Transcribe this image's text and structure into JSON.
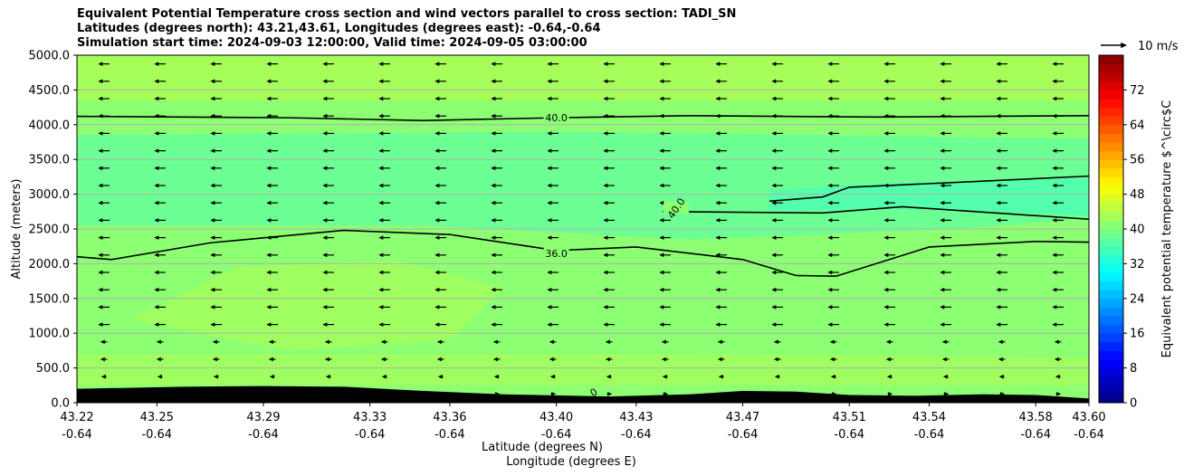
{
  "chart_data": {
    "type": "heatmap",
    "title": [
      "Equivalent Potential Temperature cross section and wind vectors parallel to cross section: TADI_SN",
      "Latitudes (degrees north): 43.21,43.61, Longitudes (degrees east): -0.64,-0.64",
      "Simulation start time: 2024-09-03 12:00:00, Valid time: 2024-09-05 03:00:00"
    ],
    "xlabel": "Latitude (degrees N)",
    "xlabel2": "Longitude (degrees E)",
    "ylabel": "Altitude (meters)",
    "x_ticks": [
      {
        "lat": "43.22",
        "lon": "-0.64"
      },
      {
        "lat": "43.25",
        "lon": "-0.64"
      },
      {
        "lat": "43.29",
        "lon": "-0.64"
      },
      {
        "lat": "43.33",
        "lon": "-0.64"
      },
      {
        "lat": "43.36",
        "lon": "-0.64"
      },
      {
        "lat": "43.40",
        "lon": "-0.64"
      },
      {
        "lat": "43.43",
        "lon": "-0.64"
      },
      {
        "lat": "43.47",
        "lon": "-0.64"
      },
      {
        "lat": "43.51",
        "lon": "-0.64"
      },
      {
        "lat": "43.54",
        "lon": "-0.64"
      },
      {
        "lat": "43.58",
        "lon": "-0.64"
      },
      {
        "lat": "43.60",
        "lon": "-0.64"
      }
    ],
    "xlim": [
      43.22,
      43.6
    ],
    "y_ticks": [
      "0.0",
      "500.0",
      "1000.0",
      "1500.0",
      "2000.0",
      "2500.0",
      "3000.0",
      "3500.0",
      "4000.0",
      "4500.0",
      "5000.0"
    ],
    "ylim": [
      0,
      5000
    ],
    "grid": "horizontal",
    "colorbar": {
      "label": "Equivalent potential temperature $^\\circ$C",
      "range": [
        0,
        80
      ],
      "ticks": [
        "0",
        "8",
        "16",
        "24",
        "32",
        "40",
        "48",
        "56",
        "64",
        "72"
      ]
    },
    "quiver_key": "10 m/s",
    "contour_labels": [
      "40.0",
      "36.0",
      "40.0",
      "0"
    ],
    "contours": [
      {
        "label": "40.0",
        "points": [
          [
            43.22,
            4120
          ],
          [
            43.3,
            4100
          ],
          [
            43.35,
            4060
          ],
          [
            43.4,
            4100
          ],
          [
            43.45,
            4130
          ],
          [
            43.52,
            4110
          ],
          [
            43.6,
            4130
          ]
        ]
      },
      {
        "label": "40.0",
        "points": [
          [
            43.22,
            2100
          ],
          [
            43.233,
            2060
          ],
          [
            43.27,
            2300
          ],
          [
            43.32,
            2480
          ],
          [
            43.36,
            2420
          ],
          [
            43.4,
            2190
          ],
          [
            43.43,
            2240
          ],
          [
            43.47,
            2060
          ],
          [
            43.49,
            1830
          ],
          [
            43.505,
            1820
          ],
          [
            43.54,
            2240
          ],
          [
            43.58,
            2320
          ],
          [
            43.6,
            2310
          ]
        ]
      },
      {
        "label": "36.0",
        "points": [
          [
            43.48,
            2900
          ],
          [
            43.5,
            2960
          ],
          [
            43.51,
            3100
          ],
          [
            43.55,
            3170
          ],
          [
            43.6,
            3260
          ]
        ]
      },
      {
        "label": "36.0",
        "points": [
          [
            43.44,
            2750
          ],
          [
            43.5,
            2730
          ],
          [
            43.53,
            2820
          ],
          [
            43.6,
            2640
          ]
        ]
      }
    ],
    "wind": "mostly northerly flow toward decreasing latitude aloft (leftward arrows), weak southerly near the surface"
  }
}
